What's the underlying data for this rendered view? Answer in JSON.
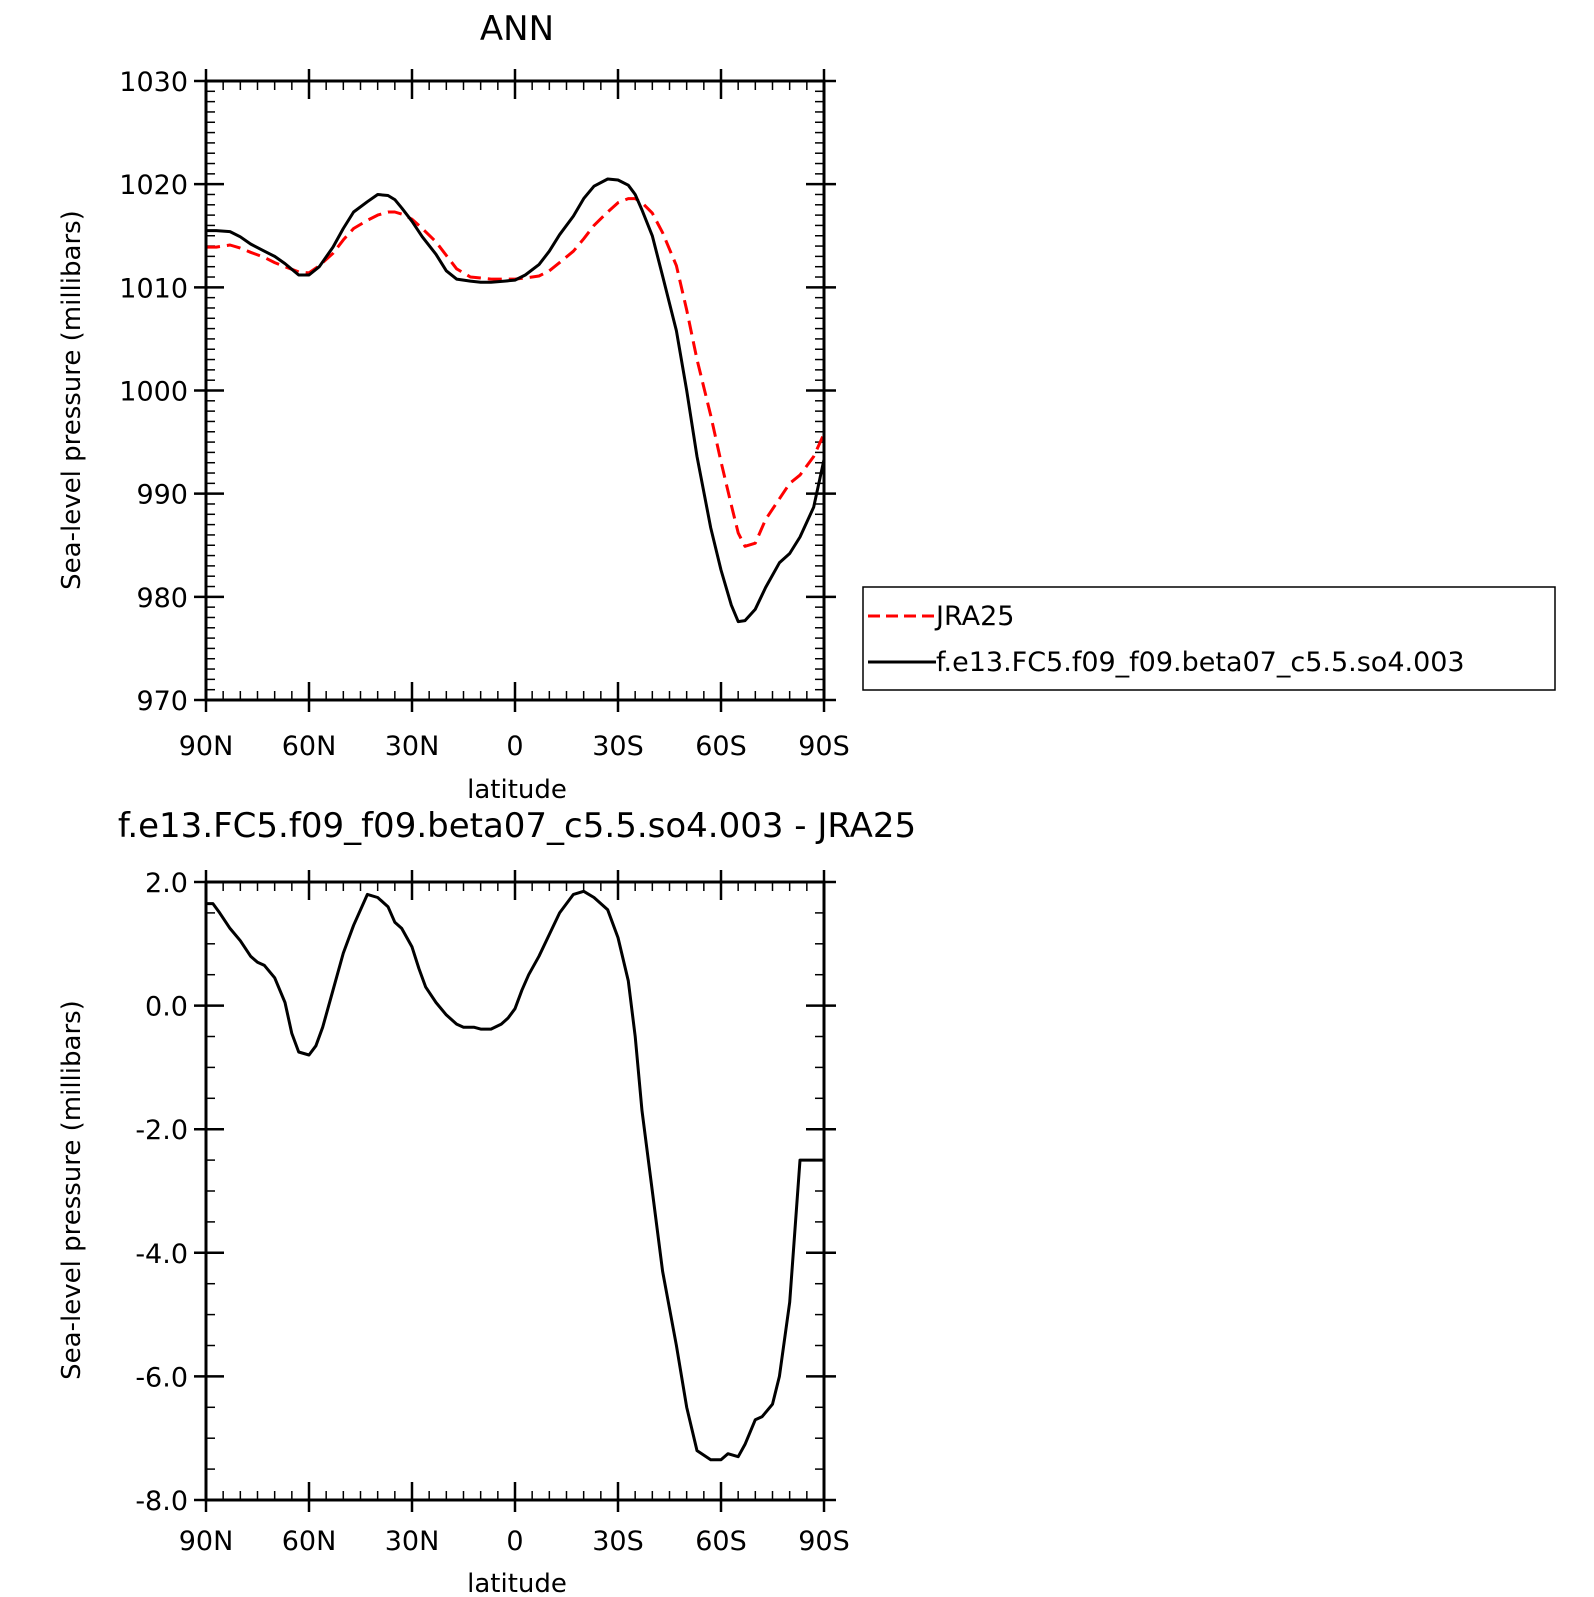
{
  "chart_data": [
    {
      "type": "line",
      "title": "ANN",
      "xlabel": "latitude",
      "ylabel": "Sea-level pressure (millibars)",
      "xlim": [
        90,
        -90
      ],
      "ylim": [
        970,
        1030
      ],
      "x_ticks": [
        {
          "value": 90,
          "label": "90N"
        },
        {
          "value": 60,
          "label": "60N"
        },
        {
          "value": 30,
          "label": "30N"
        },
        {
          "value": 0,
          "label": "0"
        },
        {
          "value": -30,
          "label": "30S"
        },
        {
          "value": -60,
          "label": "60S"
        },
        {
          "value": -90,
          "label": "90S"
        }
      ],
      "y_ticks": [
        {
          "value": 1030,
          "label": "1030"
        },
        {
          "value": 1020,
          "label": "1020"
        },
        {
          "value": 1010,
          "label": "1010"
        },
        {
          "value": 1000,
          "label": "1000"
        },
        {
          "value": 990,
          "label": "990"
        },
        {
          "value": 980,
          "label": "980"
        },
        {
          "value": 970,
          "label": "970"
        }
      ],
      "legend_position": "right",
      "series": [
        {
          "name": "JRA25",
          "color": "#ff0000",
          "dash": "dashed",
          "x": [
            90,
            87,
            83,
            80,
            77,
            73,
            70,
            67,
            63,
            60,
            57,
            53,
            50,
            47,
            43,
            40,
            37,
            35,
            33,
            30,
            27,
            23,
            20,
            17,
            13,
            10,
            7,
            3,
            0,
            -3,
            -7,
            -10,
            -13,
            -17,
            -20,
            -23,
            -27,
            -30,
            -33,
            -35,
            -37,
            -40,
            -43,
            -47,
            -50,
            -53,
            -57,
            -60,
            -63,
            -65,
            -67,
            -70,
            -73,
            -77,
            -80,
            -83,
            -87,
            -90
          ],
          "values": [
            1013.9,
            1013.9,
            1014.1,
            1013.8,
            1013.4,
            1012.9,
            1012.4,
            1012.0,
            1011.5,
            1011.4,
            1012.1,
            1013.3,
            1014.6,
            1015.7,
            1016.5,
            1017.0,
            1017.3,
            1017.3,
            1017.1,
            1016.6,
            1015.7,
            1014.4,
            1013.1,
            1011.8,
            1011.0,
            1010.9,
            1010.8,
            1010.8,
            1010.8,
            1010.9,
            1011.1,
            1011.6,
            1012.4,
            1013.5,
            1014.7,
            1016.0,
            1017.3,
            1018.2,
            1018.6,
            1018.6,
            1018.2,
            1017.2,
            1015.3,
            1012.1,
            1007.8,
            1003.0,
            997.6,
            993.1,
            988.9,
            986.2,
            984.9,
            985.2,
            987.5,
            989.5,
            991.0,
            991.8,
            993.6,
            995.8
          ]
        },
        {
          "name": "f.e13.FC5.f09_f09.beta07_c5.5.so4.003",
          "color": "#000000",
          "dash": "solid",
          "x": [
            90,
            87,
            83,
            80,
            77,
            73,
            70,
            67,
            63,
            60,
            57,
            53,
            50,
            47,
            43,
            40,
            37,
            35,
            33,
            30,
            27,
            23,
            20,
            17,
            13,
            10,
            7,
            3,
            0,
            -3,
            -7,
            -10,
            -13,
            -17,
            -20,
            -23,
            -27,
            -30,
            -33,
            -35,
            -37,
            -40,
            -43,
            -47,
            -50,
            -53,
            -57,
            -60,
            -63,
            -65,
            -67,
            -70,
            -73,
            -77,
            -80,
            -83,
            -87,
            -90
          ],
          "values": [
            1015.5,
            1015.5,
            1015.4,
            1014.9,
            1014.2,
            1013.5,
            1013.0,
            1012.3,
            1011.2,
            1011.2,
            1012.0,
            1013.9,
            1015.7,
            1017.3,
            1018.3,
            1019.0,
            1018.9,
            1018.5,
            1017.7,
            1016.4,
            1014.9,
            1013.2,
            1011.6,
            1010.8,
            1010.6,
            1010.5,
            1010.5,
            1010.6,
            1010.7,
            1011.2,
            1012.2,
            1013.5,
            1015.1,
            1016.9,
            1018.6,
            1019.8,
            1020.5,
            1020.4,
            1019.9,
            1019.0,
            1017.5,
            1015.0,
            1011.1,
            1005.8,
            1000.0,
            993.6,
            986.7,
            982.6,
            979.2,
            977.6,
            977.7,
            978.8,
            980.9,
            983.3,
            984.2,
            985.8,
            988.7,
            993.3
          ]
        }
      ]
    },
    {
      "type": "line",
      "title": "f.e13.FC5.f09_f09.beta07_c5.5.so4.003 - JRA25",
      "xlabel": "latitude",
      "ylabel": "Sea-level pressure (millibars)",
      "xlim": [
        90,
        -90
      ],
      "ylim": [
        -8,
        2
      ],
      "x_ticks": [
        {
          "value": 90,
          "label": "90N"
        },
        {
          "value": 60,
          "label": "60N"
        },
        {
          "value": 30,
          "label": "30N"
        },
        {
          "value": 0,
          "label": "0"
        },
        {
          "value": -30,
          "label": "30S"
        },
        {
          "value": -60,
          "label": "60S"
        },
        {
          "value": -90,
          "label": "90S"
        }
      ],
      "y_ticks": [
        {
          "value": 2,
          "label": "2.0"
        },
        {
          "value": 0,
          "label": "0.0"
        },
        {
          "value": -2,
          "label": "-2.0"
        },
        {
          "value": -4,
          "label": "-4.0"
        },
        {
          "value": -6,
          "label": "-6.0"
        },
        {
          "value": -8,
          "label": "-8.0"
        }
      ],
      "series": [
        {
          "color": "#000000",
          "dash": "solid",
          "x": [
            90,
            88,
            86,
            83,
            80,
            77,
            75,
            73,
            70,
            67,
            65,
            63,
            60,
            58,
            56,
            53,
            50,
            47,
            43,
            40,
            37,
            35,
            33,
            30,
            28,
            26,
            23,
            20,
            17,
            15,
            12,
            10,
            7,
            4,
            2,
            0,
            -2,
            -4,
            -7,
            -10,
            -13,
            -17,
            -20,
            -23,
            -27,
            -30,
            -33,
            -35,
            -37,
            -40,
            -43,
            -47,
            -50,
            -53,
            -57,
            -60,
            -62,
            -65,
            -67,
            -70,
            -72,
            -75,
            -77,
            -80,
            -83,
            -86,
            -88,
            -90
          ],
          "values": [
            1.65,
            1.65,
            1.5,
            1.25,
            1.05,
            0.8,
            0.7,
            0.65,
            0.45,
            0.05,
            -0.45,
            -0.75,
            -0.8,
            -0.65,
            -0.35,
            0.25,
            0.85,
            1.3,
            1.8,
            1.75,
            1.6,
            1.35,
            1.25,
            0.95,
            0.6,
            0.3,
            0.05,
            -0.15,
            -0.3,
            -0.35,
            -0.35,
            -0.38,
            -0.38,
            -0.3,
            -0.2,
            -0.05,
            0.25,
            0.5,
            0.8,
            1.15,
            1.5,
            1.8,
            1.85,
            1.75,
            1.55,
            1.1,
            0.4,
            -0.5,
            -1.7,
            -3.0,
            -4.3,
            -5.5,
            -6.5,
            -7.2,
            -7.35,
            -7.35,
            -7.25,
            -7.3,
            -7.1,
            -6.7,
            -6.65,
            -6.45,
            -6.0,
            -4.8,
            -2.5,
            -2.5,
            -2.5,
            -2.5
          ]
        }
      ]
    }
  ]
}
